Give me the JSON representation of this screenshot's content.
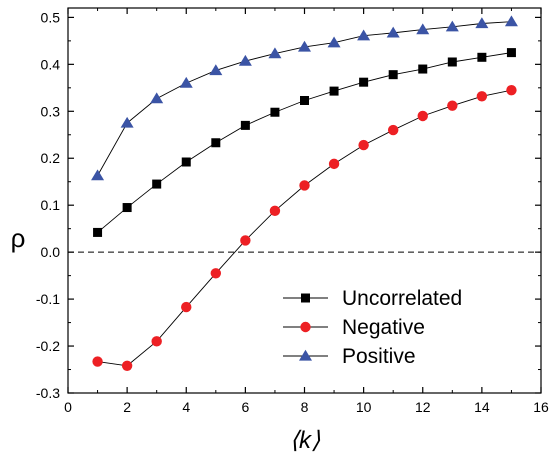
{
  "chart_data": {
    "type": "line",
    "title": "",
    "xlabel": "⟨k⟩",
    "ylabel": "ρ",
    "xlim": [
      0,
      16
    ],
    "ylim": [
      -0.3,
      0.52
    ],
    "x_ticks": [
      0,
      2,
      4,
      6,
      8,
      10,
      12,
      14,
      16
    ],
    "x_tick_labels": [
      "0",
      "2",
      "4",
      "6",
      "8",
      "10",
      "12",
      "14",
      "16"
    ],
    "y_ticks": [
      -0.3,
      -0.2,
      -0.1,
      0.0,
      0.1,
      0.2,
      0.3,
      0.4,
      0.5
    ],
    "y_tick_labels": [
      "-0.3",
      "-0.2",
      "-0.1",
      "0.0",
      "0.1",
      "0.2",
      "0.3",
      "0.4",
      "0.5"
    ],
    "grid": false,
    "reference_line": {
      "y": 0.0,
      "style": "dashed"
    },
    "legend_position": "bottom-right",
    "x": [
      1,
      2,
      3,
      4,
      5,
      6,
      7,
      8,
      9,
      10,
      11,
      12,
      13,
      14,
      15
    ],
    "series": [
      {
        "name": "Uncorrelated",
        "marker": "square",
        "color": "#000000",
        "values": [
          0.042,
          0.095,
          0.145,
          0.192,
          0.233,
          0.27,
          0.298,
          0.323,
          0.343,
          0.362,
          0.378,
          0.39,
          0.405,
          0.415,
          0.425
        ]
      },
      {
        "name": "Negative",
        "marker": "circle",
        "color": "#ed2024",
        "values": [
          -0.233,
          -0.242,
          -0.19,
          -0.117,
          -0.045,
          0.025,
          0.088,
          0.142,
          0.188,
          0.228,
          0.26,
          0.29,
          0.312,
          0.332,
          0.345
        ]
      },
      {
        "name": "Positive",
        "marker": "triangle",
        "color": "#3b54a5",
        "values": [
          0.163,
          0.275,
          0.327,
          0.36,
          0.387,
          0.407,
          0.423,
          0.437,
          0.446,
          0.461,
          0.467,
          0.474,
          0.48,
          0.487,
          0.491
        ]
      }
    ]
  }
}
